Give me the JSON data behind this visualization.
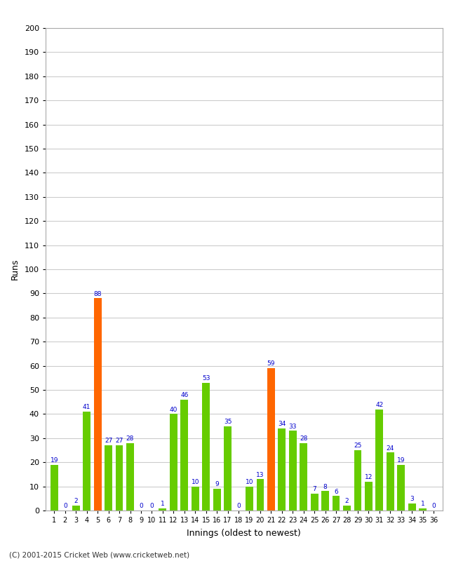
{
  "innings": [
    1,
    2,
    3,
    4,
    5,
    6,
    7,
    8,
    9,
    10,
    11,
    12,
    13,
    14,
    15,
    16,
    17,
    18,
    19,
    20,
    21,
    22,
    23,
    24,
    25,
    26,
    27,
    28,
    29,
    30,
    31,
    32,
    33,
    34,
    35,
    36
  ],
  "values": [
    19,
    0,
    2,
    41,
    88,
    27,
    27,
    28,
    0,
    0,
    1,
    40,
    46,
    10,
    53,
    9,
    35,
    0,
    10,
    13,
    59,
    34,
    33,
    28,
    7,
    8,
    6,
    2,
    25,
    12,
    42,
    24,
    19,
    3,
    1,
    0
  ],
  "colors": [
    "#66cc00",
    "#66cc00",
    "#66cc00",
    "#66cc00",
    "#ff6600",
    "#66cc00",
    "#66cc00",
    "#66cc00",
    "#66cc00",
    "#66cc00",
    "#66cc00",
    "#66cc00",
    "#66cc00",
    "#66cc00",
    "#66cc00",
    "#66cc00",
    "#66cc00",
    "#66cc00",
    "#66cc00",
    "#66cc00",
    "#ff6600",
    "#66cc00",
    "#66cc00",
    "#66cc00",
    "#66cc00",
    "#66cc00",
    "#66cc00",
    "#66cc00",
    "#66cc00",
    "#66cc00",
    "#66cc00",
    "#66cc00",
    "#66cc00",
    "#66cc00",
    "#66cc00",
    "#66cc00"
  ],
  "xlabel": "Innings (oldest to newest)",
  "ylabel": "Runs",
  "ylim": [
    0,
    200
  ],
  "yticks": [
    0,
    10,
    20,
    30,
    40,
    50,
    60,
    70,
    80,
    90,
    100,
    110,
    120,
    130,
    140,
    150,
    160,
    170,
    180,
    190,
    200
  ],
  "background_color": "#ffffff",
  "grid_color": "#cccccc",
  "label_color": "#0000cc",
  "footer": "(C) 2001-2015 Cricket Web (www.cricketweb.net)"
}
